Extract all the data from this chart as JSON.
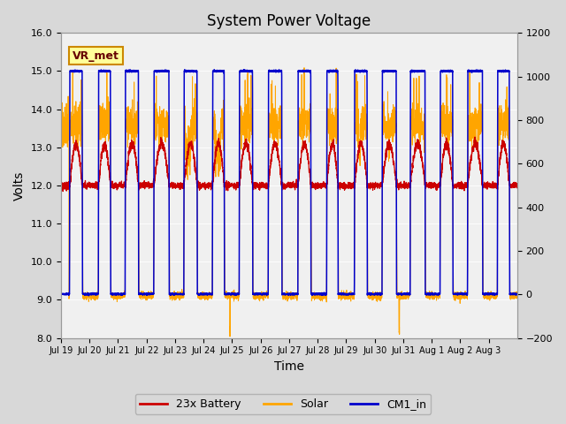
{
  "title": "System Power Voltage",
  "xlabel": "Time",
  "ylabel": "Volts",
  "ylim_left": [
    8.0,
    16.0
  ],
  "ylim_right": [
    -200,
    1200
  ],
  "yticks_left": [
    8.0,
    9.0,
    10.0,
    11.0,
    12.0,
    13.0,
    14.0,
    15.0,
    16.0
  ],
  "yticks_right": [
    -200,
    0,
    200,
    400,
    600,
    800,
    1000,
    1200
  ],
  "xtick_labels": [
    "Jul 19",
    "Jul 20",
    "Jul 21",
    "Jul 22",
    "Jul 23",
    "Jul 24",
    "Jul 25",
    "Jul 26",
    "Jul 27",
    "Jul 28",
    "Jul 29",
    "Jul 30",
    "Jul 31",
    "Aug 1",
    "Aug 2",
    "Aug 3"
  ],
  "fig_bg_color": "#d8d8d8",
  "plot_bg_color": "#e8e8e8",
  "plot_inner_bg": "#f0f0f0",
  "battery_color": "#cc0000",
  "solar_color": "#ffa500",
  "cm1_color": "#0000cc",
  "legend_labels": [
    "23x Battery",
    "Solar",
    "CM1_in"
  ],
  "annotation_text": "VR_met",
  "annotation_box_facecolor": "#ffff99",
  "annotation_box_edgecolor": "#cc8800",
  "title_fontsize": 12,
  "axis_label_fontsize": 10,
  "tick_fontsize": 8,
  "legend_fontsize": 9,
  "num_days": 16,
  "points_per_day": 288
}
